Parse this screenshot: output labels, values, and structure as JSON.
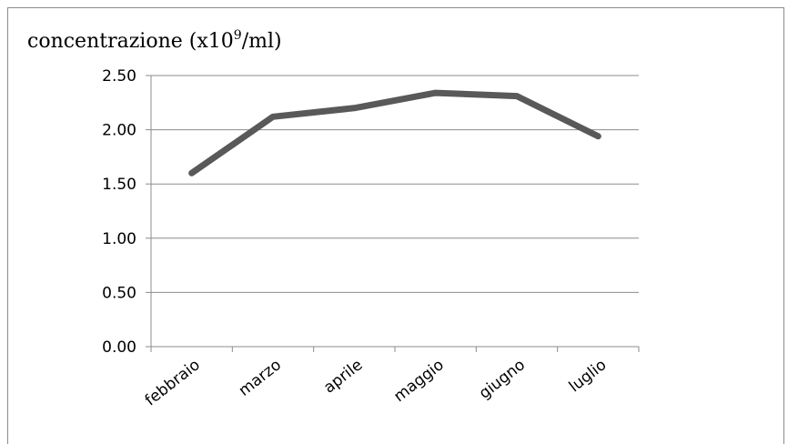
{
  "chart_data": {
    "type": "line",
    "title": "concentrazione (x10",
    "title_superscript": "9",
    "title_suffix": "/ml)",
    "categories": [
      "febbraio",
      "marzo",
      "aprile",
      "maggio",
      "giugno",
      "luglio"
    ],
    "series": [
      {
        "values": [
          1.6,
          2.12,
          2.2,
          2.34,
          2.31,
          1.94
        ],
        "color": "#595959"
      }
    ],
    "ylim": [
      0,
      2.5
    ],
    "yticks": [
      "0.00",
      "0.50",
      "1.00",
      "1.50",
      "2.00",
      "2.50"
    ],
    "grid": true,
    "legend": "none",
    "gridColor": "#8c8c8c"
  }
}
